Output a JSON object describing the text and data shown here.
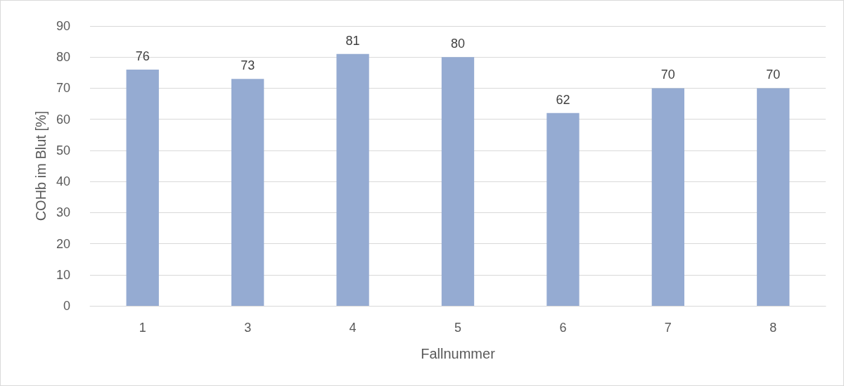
{
  "chart_data": {
    "type": "bar",
    "xlabel": "Fallnummer",
    "ylabel": "COHb im Blut [%]",
    "categories": [
      "1",
      "3",
      "4",
      "5",
      "6",
      "7",
      "8"
    ],
    "values": [
      76,
      73,
      81,
      80,
      62,
      70,
      70
    ],
    "color": "#95abd2",
    "ylim": [
      0,
      90
    ],
    "yticks": [
      0,
      10,
      20,
      30,
      40,
      50,
      60,
      70,
      80,
      90
    ],
    "grid": "y",
    "data_labels": true
  }
}
